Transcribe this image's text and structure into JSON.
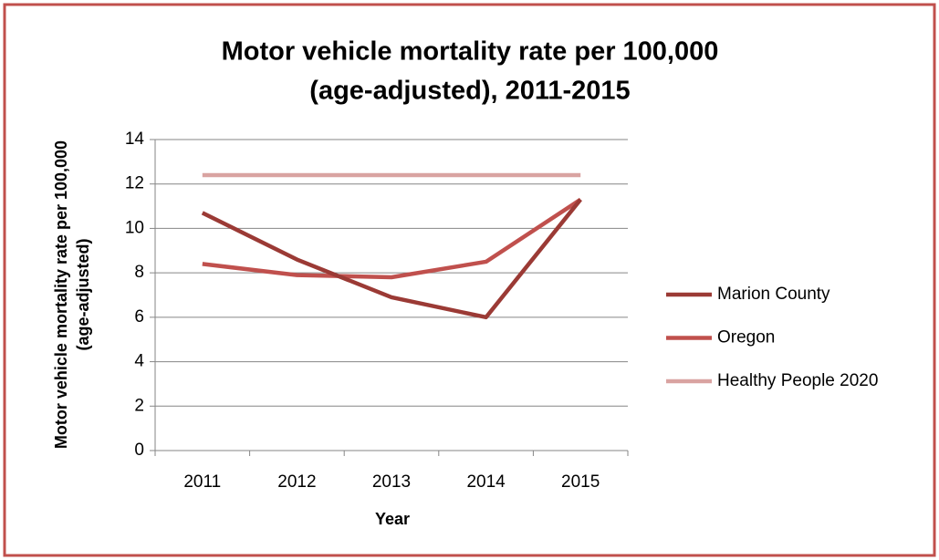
{
  "chart_data": {
    "type": "line",
    "title": [
      "Motor vehicle mortality rate per 100,000",
      "(age-adjusted), 2011-2015"
    ],
    "x_label": "Year",
    "y_label": [
      "Motor vehicle mortality rate per 100,000",
      "(age-adjusted)"
    ],
    "categories": [
      "2011",
      "2012",
      "2013",
      "2014",
      "2015"
    ],
    "series": [
      {
        "name": "Marion County",
        "color": "#9b3a35",
        "values": [
          10.7,
          8.6,
          6.9,
          6.0,
          11.3
        ]
      },
      {
        "name": "Oregon",
        "color": "#c0504d",
        "values": [
          8.4,
          7.9,
          7.8,
          8.5,
          11.3
        ]
      },
      {
        "name": "Healthy People 2020",
        "color": "#d9a3a1",
        "values": [
          12.4,
          12.4,
          12.4,
          12.4,
          12.4
        ]
      }
    ],
    "ylim": [
      0,
      14
    ],
    "yticks": [
      0,
      2,
      4,
      6,
      8,
      10,
      12,
      14
    ],
    "grid": true,
    "legend": "right"
  }
}
